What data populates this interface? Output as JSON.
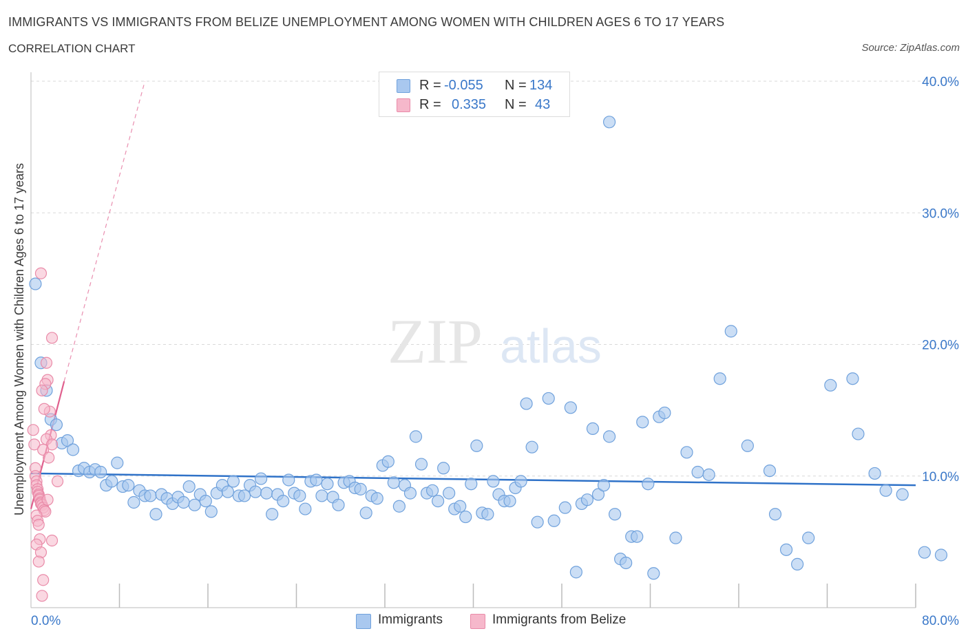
{
  "header": {
    "title": "IMMIGRANTS VS IMMIGRANTS FROM BELIZE UNEMPLOYMENT AMONG WOMEN WITH CHILDREN AGES 6 TO 17 YEARS",
    "subtitle": "CORRELATION CHART",
    "source": "Source: ZipAtlas.com"
  },
  "watermark": {
    "zip": "ZIP",
    "atlas": "atlas"
  },
  "stats_legend": {
    "rows": [
      {
        "r_label": "R =",
        "r_value": "-0.055",
        "n_label": "N =",
        "n_value": "134"
      },
      {
        "r_label": "R =",
        "r_value": "0.335",
        "n_label": "N =",
        "n_value": "43"
      }
    ]
  },
  "bottom_legend": [
    "Immigrants",
    "Immigrants from Belize"
  ],
  "colors": {
    "blue_fill": "#a9c8ef",
    "blue_stroke": "#6fa1dc",
    "blue_line": "#2f72c8",
    "pink_fill": "#f6b8cb",
    "pink_stroke": "#e98aa8",
    "pink_line": "#e0608e",
    "axis_text": "#3a78c9",
    "grid": "#d9d9d9"
  },
  "chart_data": {
    "type": "scatter",
    "title": "IMMIGRANTS VS IMMIGRANTS FROM BELIZE UNEMPLOYMENT AMONG WOMEN WITH CHILDREN AGES 6 TO 17 YEARS",
    "xlabel": "",
    "ylabel": "Unemployment Among Women with Children Ages 6 to 17 years",
    "xlim": [
      0,
      80
    ],
    "ylim": [
      0,
      40
    ],
    "x_tick_labels": [
      "0.0%",
      "80.0%"
    ],
    "y_tick_labels": [
      "10.0%",
      "20.0%",
      "30.0%",
      "40.0%"
    ],
    "y_ticks": [
      10,
      20,
      30,
      40
    ],
    "grid": "horizontal dashed",
    "series": [
      {
        "name": "Immigrants",
        "color": "#a9c8ef",
        "trend": {
          "x": [
            0,
            80
          ],
          "y": [
            10.2,
            9.3
          ]
        },
        "points": [
          [
            0.4,
            24.6
          ],
          [
            0.9,
            18.6
          ],
          [
            1.4,
            16.5
          ],
          [
            1.8,
            14.3
          ],
          [
            2.3,
            13.9
          ],
          [
            2.8,
            12.5
          ],
          [
            3.3,
            12.7
          ],
          [
            3.8,
            12.0
          ],
          [
            4.3,
            10.4
          ],
          [
            4.8,
            10.6
          ],
          [
            5.3,
            10.3
          ],
          [
            5.8,
            10.5
          ],
          [
            6.3,
            10.3
          ],
          [
            6.8,
            9.3
          ],
          [
            7.3,
            9.6
          ],
          [
            7.8,
            11.0
          ],
          [
            8.3,
            9.2
          ],
          [
            8.8,
            9.3
          ],
          [
            9.3,
            8.0
          ],
          [
            9.8,
            8.9
          ],
          [
            10.3,
            8.5
          ],
          [
            10.8,
            8.5
          ],
          [
            11.3,
            7.1
          ],
          [
            11.8,
            8.6
          ],
          [
            12.3,
            8.3
          ],
          [
            12.8,
            7.9
          ],
          [
            13.3,
            8.4
          ],
          [
            13.8,
            8.0
          ],
          [
            14.3,
            9.2
          ],
          [
            14.8,
            7.8
          ],
          [
            15.3,
            8.6
          ],
          [
            15.8,
            8.1
          ],
          [
            16.3,
            7.3
          ],
          [
            16.8,
            8.7
          ],
          [
            17.3,
            9.3
          ],
          [
            17.8,
            8.8
          ],
          [
            18.3,
            9.6
          ],
          [
            18.8,
            8.5
          ],
          [
            19.3,
            8.5
          ],
          [
            19.8,
            9.3
          ],
          [
            20.3,
            8.8
          ],
          [
            20.8,
            9.8
          ],
          [
            21.3,
            8.7
          ],
          [
            21.8,
            7.1
          ],
          [
            22.3,
            8.6
          ],
          [
            22.8,
            8.1
          ],
          [
            23.3,
            9.7
          ],
          [
            23.8,
            8.7
          ],
          [
            24.3,
            8.5
          ],
          [
            24.8,
            7.5
          ],
          [
            25.3,
            9.6
          ],
          [
            25.8,
            9.7
          ],
          [
            26.3,
            8.5
          ],
          [
            26.8,
            9.4
          ],
          [
            27.3,
            8.4
          ],
          [
            27.8,
            7.8
          ],
          [
            28.3,
            9.5
          ],
          [
            28.8,
            9.6
          ],
          [
            29.3,
            9.1
          ],
          [
            29.8,
            9.0
          ],
          [
            30.3,
            7.2
          ],
          [
            30.8,
            8.5
          ],
          [
            31.3,
            8.3
          ],
          [
            31.8,
            10.8
          ],
          [
            32.3,
            11.1
          ],
          [
            32.8,
            9.5
          ],
          [
            33.3,
            7.7
          ],
          [
            33.8,
            9.3
          ],
          [
            34.3,
            8.7
          ],
          [
            34.8,
            13.0
          ],
          [
            35.3,
            10.9
          ],
          [
            35.8,
            8.7
          ],
          [
            36.3,
            8.9
          ],
          [
            36.8,
            8.1
          ],
          [
            37.3,
            10.6
          ],
          [
            37.8,
            8.7
          ],
          [
            38.3,
            7.5
          ],
          [
            38.8,
            7.7
          ],
          [
            39.3,
            6.9
          ],
          [
            39.8,
            9.4
          ],
          [
            40.3,
            12.3
          ],
          [
            40.8,
            7.2
          ],
          [
            41.3,
            7.1
          ],
          [
            41.8,
            9.6
          ],
          [
            42.3,
            8.6
          ],
          [
            42.8,
            8.1
          ],
          [
            43.3,
            8.1
          ],
          [
            43.8,
            9.1
          ],
          [
            44.3,
            9.6
          ],
          [
            44.8,
            15.5
          ],
          [
            45.3,
            12.2
          ],
          [
            45.8,
            6.5
          ],
          [
            46.8,
            15.9
          ],
          [
            47.3,
            6.6
          ],
          [
            48.3,
            7.6
          ],
          [
            48.8,
            15.2
          ],
          [
            49.3,
            2.7
          ],
          [
            49.8,
            7.9
          ],
          [
            50.3,
            8.2
          ],
          [
            50.8,
            13.6
          ],
          [
            51.3,
            8.6
          ],
          [
            51.8,
            9.3
          ],
          [
            52.3,
            13.0
          ],
          [
            52.8,
            7.1
          ],
          [
            53.3,
            3.7
          ],
          [
            53.8,
            3.4
          ],
          [
            54.3,
            5.4
          ],
          [
            54.8,
            5.4
          ],
          [
            55.3,
            14.1
          ],
          [
            55.8,
            9.4
          ],
          [
            56.3,
            2.6
          ],
          [
            56.8,
            14.5
          ],
          [
            57.3,
            14.8
          ],
          [
            58.3,
            5.3
          ],
          [
            59.3,
            11.8
          ],
          [
            60.3,
            10.3
          ],
          [
            61.3,
            10.1
          ],
          [
            62.3,
            17.4
          ],
          [
            63.3,
            21.0
          ],
          [
            64.8,
            12.3
          ],
          [
            66.8,
            10.4
          ],
          [
            67.3,
            7.1
          ],
          [
            68.3,
            4.4
          ],
          [
            69.3,
            3.3
          ],
          [
            70.3,
            5.3
          ],
          [
            72.3,
            16.9
          ],
          [
            74.3,
            17.4
          ],
          [
            74.8,
            13.2
          ],
          [
            76.3,
            10.2
          ],
          [
            77.3,
            8.9
          ],
          [
            78.8,
            8.6
          ],
          [
            80.8,
            4.2
          ],
          [
            82.3,
            4.0
          ],
          [
            52.3,
            36.9
          ]
        ]
      },
      {
        "name": "Immigrants from Belize",
        "color": "#f6b8cb",
        "trend": {
          "x": [
            0,
            3.0
          ],
          "y": [
            7.5,
            17.2
          ]
        },
        "trend_dashed": {
          "x": [
            3.0,
            10.3
          ],
          "y": [
            17.2,
            40.0
          ]
        },
        "points": [
          [
            0.2,
            13.5
          ],
          [
            0.3,
            12.4
          ],
          [
            0.4,
            10.6
          ],
          [
            0.4,
            10.0
          ],
          [
            0.5,
            9.6
          ],
          [
            0.5,
            9.3
          ],
          [
            0.6,
            9.0
          ],
          [
            0.6,
            8.8
          ],
          [
            0.7,
            8.6
          ],
          [
            0.7,
            8.5
          ],
          [
            0.8,
            8.3
          ],
          [
            0.8,
            8.2
          ],
          [
            0.9,
            8.0
          ],
          [
            0.9,
            7.9
          ],
          [
            1.0,
            7.8
          ],
          [
            1.1,
            7.6
          ],
          [
            1.2,
            7.4
          ],
          [
            1.3,
            7.3
          ],
          [
            0.5,
            7.0
          ],
          [
            0.6,
            6.6
          ],
          [
            0.7,
            6.3
          ],
          [
            0.8,
            5.2
          ],
          [
            0.5,
            4.8
          ],
          [
            0.9,
            4.2
          ],
          [
            0.7,
            3.5
          ],
          [
            1.1,
            2.1
          ],
          [
            1.0,
            0.9
          ],
          [
            0.9,
            25.4
          ],
          [
            1.9,
            20.5
          ],
          [
            1.4,
            18.6
          ],
          [
            1.5,
            17.3
          ],
          [
            1.3,
            17.0
          ],
          [
            1.0,
            16.5
          ],
          [
            1.7,
            14.9
          ],
          [
            1.2,
            15.1
          ],
          [
            1.8,
            13.1
          ],
          [
            1.4,
            12.8
          ],
          [
            1.9,
            12.4
          ],
          [
            1.1,
            12.0
          ],
          [
            2.4,
            9.6
          ],
          [
            1.5,
            8.2
          ],
          [
            1.9,
            5.1
          ],
          [
            1.6,
            11.4
          ]
        ]
      }
    ]
  }
}
